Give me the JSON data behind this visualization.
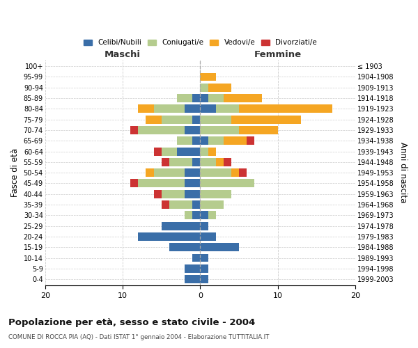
{
  "age_groups": [
    "100+",
    "95-99",
    "90-94",
    "85-89",
    "80-84",
    "75-79",
    "70-74",
    "65-69",
    "60-64",
    "55-59",
    "50-54",
    "45-49",
    "40-44",
    "35-39",
    "30-34",
    "25-29",
    "20-24",
    "15-19",
    "10-14",
    "5-9",
    "0-4"
  ],
  "birth_years": [
    "≤ 1903",
    "1904-1908",
    "1909-1913",
    "1914-1918",
    "1919-1923",
    "1924-1928",
    "1929-1933",
    "1934-1938",
    "1939-1943",
    "1944-1948",
    "1949-1953",
    "1954-1958",
    "1959-1963",
    "1964-1968",
    "1969-1973",
    "1974-1978",
    "1979-1983",
    "1984-1988",
    "1989-1993",
    "1994-1998",
    "1999-2003"
  ],
  "colors": {
    "celibe": "#3a6ea8",
    "coniugato": "#b5cc8e",
    "vedovo": "#f5a623",
    "divorziato": "#cc3333"
  },
  "maschi": {
    "celibe": [
      0,
      0,
      0,
      1,
      2,
      1,
      2,
      1,
      3,
      1,
      2,
      2,
      2,
      1,
      1,
      5,
      8,
      4,
      1,
      2,
      2
    ],
    "coniugato": [
      0,
      0,
      0,
      2,
      4,
      4,
      6,
      2,
      2,
      3,
      4,
      6,
      3,
      3,
      1,
      0,
      0,
      0,
      0,
      0,
      0
    ],
    "vedovo": [
      0,
      0,
      0,
      0,
      2,
      2,
      0,
      0,
      0,
      0,
      1,
      0,
      0,
      0,
      0,
      0,
      0,
      0,
      0,
      0,
      0
    ],
    "divorziato": [
      0,
      0,
      0,
      0,
      0,
      0,
      1,
      0,
      1,
      1,
      0,
      1,
      1,
      1,
      0,
      0,
      0,
      0,
      0,
      0,
      0
    ]
  },
  "femmine": {
    "nubile": [
      0,
      0,
      0,
      1,
      2,
      0,
      0,
      1,
      0,
      0,
      0,
      0,
      0,
      0,
      1,
      1,
      2,
      5,
      1,
      1,
      1
    ],
    "coniugata": [
      0,
      0,
      1,
      2,
      3,
      4,
      5,
      2,
      1,
      2,
      4,
      7,
      4,
      3,
      1,
      0,
      0,
      0,
      0,
      0,
      0
    ],
    "vedova": [
      0,
      2,
      3,
      5,
      12,
      9,
      5,
      3,
      1,
      1,
      1,
      0,
      0,
      0,
      0,
      0,
      0,
      0,
      0,
      0,
      0
    ],
    "divorziata": [
      0,
      0,
      0,
      0,
      0,
      0,
      0,
      1,
      0,
      1,
      1,
      0,
      0,
      0,
      0,
      0,
      0,
      0,
      0,
      0,
      0
    ]
  },
  "xlim": [
    -20,
    20
  ],
  "xticks": [
    -20,
    -10,
    0,
    10,
    20
  ],
  "xticklabels": [
    "20",
    "10",
    "0",
    "10",
    "20"
  ],
  "title": "Popolazione per età, sesso e stato civile - 2004",
  "subtitle": "COMUNE DI ROCCA PIA (AQ) - Dati ISTAT 1° gennaio 2004 - Elaborazione TUTTITALIA.IT",
  "ylabel_left": "Fasce di età",
  "ylabel_right": "Anni di nascita",
  "label_maschi": "Maschi",
  "label_femmine": "Femmine",
  "legend_labels": [
    "Celibi/Nubili",
    "Coniugati/e",
    "Vedovi/e",
    "Divorziati/e"
  ],
  "bg_color": "#ffffff",
  "grid_color": "#cccccc"
}
